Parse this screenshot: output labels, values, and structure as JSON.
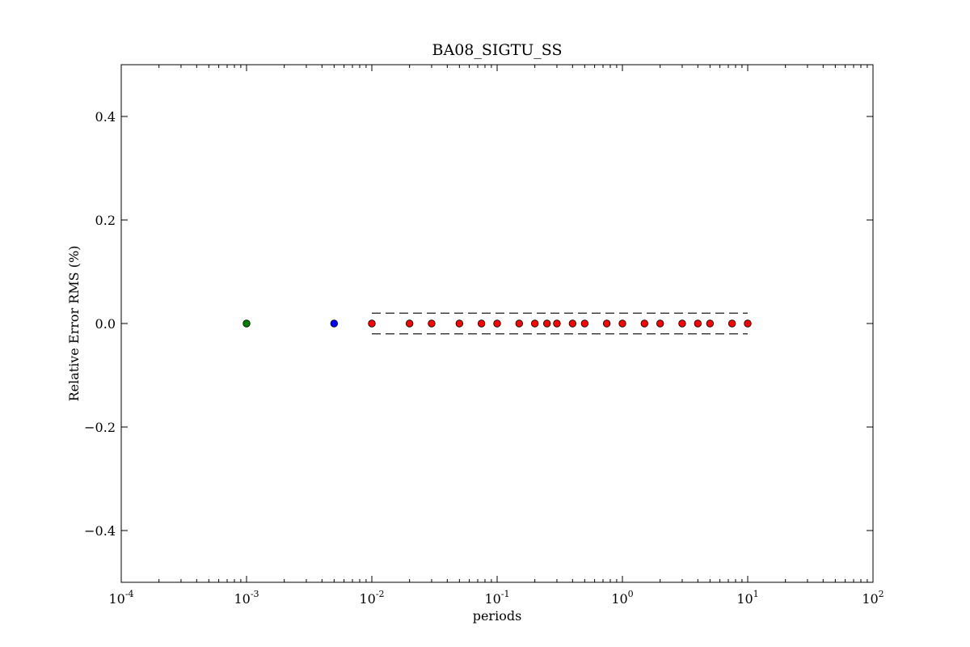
{
  "chart_data": {
    "type": "scatter",
    "title": "BA08_SIGTU_SS",
    "xlabel": "periods",
    "ylabel": "Relative Error RMS (%)",
    "xscale": "log",
    "xlim": [
      0.0001,
      100
    ],
    "ylim": [
      -0.5,
      0.5
    ],
    "grid": false,
    "legend": "none",
    "x_ticks": [
      {
        "value": 0.0001,
        "base": "10",
        "exp": "-4"
      },
      {
        "value": 0.001,
        "base": "10",
        "exp": "-3"
      },
      {
        "value": 0.01,
        "base": "10",
        "exp": "-2"
      },
      {
        "value": 0.1,
        "base": "10",
        "exp": "-1"
      },
      {
        "value": 1,
        "base": "10",
        "exp": "0"
      },
      {
        "value": 10,
        "base": "10",
        "exp": "1"
      },
      {
        "value": 100,
        "base": "10",
        "exp": "2"
      }
    ],
    "y_ticks": [
      {
        "value": 0.4,
        "label": "0.4"
      },
      {
        "value": 0.2,
        "label": "0.2"
      },
      {
        "value": 0.0,
        "label": "0.0"
      },
      {
        "value": -0.2,
        "label": "−0.2"
      },
      {
        "value": -0.4,
        "label": "−0.4"
      }
    ],
    "series": [
      {
        "color": "#008000",
        "points": [
          {
            "x": 0.001,
            "y": 0.0
          }
        ]
      },
      {
        "color": "#0000ff",
        "points": [
          {
            "x": 0.005,
            "y": 0.0
          }
        ]
      },
      {
        "color": "#ff0000",
        "points": [
          {
            "x": 0.01,
            "y": 0.0
          },
          {
            "x": 0.02,
            "y": 0.0
          },
          {
            "x": 0.03,
            "y": 0.0
          },
          {
            "x": 0.05,
            "y": 0.0
          },
          {
            "x": 0.075,
            "y": 0.0
          },
          {
            "x": 0.1,
            "y": 0.0
          },
          {
            "x": 0.15,
            "y": 0.0
          },
          {
            "x": 0.2,
            "y": 0.0
          },
          {
            "x": 0.25,
            "y": 0.0
          },
          {
            "x": 0.3,
            "y": 0.0
          },
          {
            "x": 0.4,
            "y": 0.0
          },
          {
            "x": 0.5,
            "y": 0.0
          },
          {
            "x": 0.75,
            "y": 0.0
          },
          {
            "x": 1.0,
            "y": 0.0
          },
          {
            "x": 1.5,
            "y": 0.0
          },
          {
            "x": 2.0,
            "y": 0.0
          },
          {
            "x": 3.0,
            "y": 0.0
          },
          {
            "x": 4.0,
            "y": 0.0
          },
          {
            "x": 5.0,
            "y": 0.0
          },
          {
            "x": 7.5,
            "y": 0.0
          },
          {
            "x": 10.0,
            "y": 0.0
          }
        ]
      }
    ],
    "reference_lines": [
      {
        "style": "dashed",
        "color": "#000000",
        "y": 0.02,
        "x_start": 0.01,
        "x_end": 10
      },
      {
        "style": "dashed",
        "color": "#000000",
        "y": -0.02,
        "x_start": 0.01,
        "x_end": 10
      }
    ]
  }
}
